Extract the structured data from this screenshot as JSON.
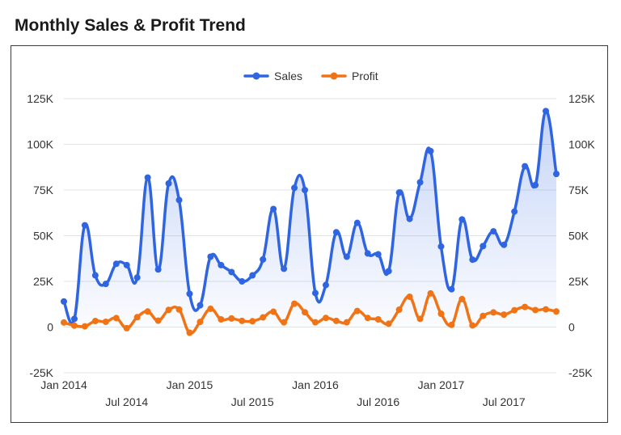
{
  "title": "Monthly Sales & Profit Trend",
  "chart_data": {
    "type": "line",
    "title": "Monthly Sales & Profit Trend",
    "x": [
      "2014-01",
      "2014-02",
      "2014-03",
      "2014-04",
      "2014-05",
      "2014-06",
      "2014-07",
      "2014-08",
      "2014-09",
      "2014-10",
      "2014-11",
      "2014-12",
      "2015-01",
      "2015-02",
      "2015-03",
      "2015-04",
      "2015-05",
      "2015-06",
      "2015-07",
      "2015-08",
      "2015-09",
      "2015-10",
      "2015-11",
      "2015-12",
      "2016-01",
      "2016-02",
      "2016-03",
      "2016-04",
      "2016-05",
      "2016-06",
      "2016-07",
      "2016-08",
      "2016-09",
      "2016-10",
      "2016-11",
      "2016-12",
      "2017-01",
      "2017-02",
      "2017-03",
      "2017-04",
      "2017-05",
      "2017-06",
      "2017-07",
      "2017-08",
      "2017-09",
      "2017-10",
      "2017-11",
      "2017-12"
    ],
    "x_tick_labels": [
      {
        "label": "Jan 2014",
        "index": 0,
        "row": 1
      },
      {
        "label": "Jul 2014",
        "index": 6,
        "row": 2
      },
      {
        "label": "Jan 2015",
        "index": 12,
        "row": 1
      },
      {
        "label": "Jul 2015",
        "index": 18,
        "row": 2
      },
      {
        "label": "Jan 2016",
        "index": 24,
        "row": 1
      },
      {
        "label": "Jul 2016",
        "index": 30,
        "row": 2
      },
      {
        "label": "Jan 2017",
        "index": 36,
        "row": 1
      },
      {
        "label": "Jul 2017",
        "index": 42,
        "row": 2
      }
    ],
    "series": [
      {
        "name": "Sales",
        "color": "#2f65e0",
        "fill": true,
        "values": [
          14000,
          4500,
          55700,
          28300,
          23600,
          34600,
          33900,
          27100,
          81800,
          31500,
          78600,
          69500,
          18200,
          11900,
          38500,
          33900,
          30100,
          25000,
          28300,
          37000,
          64600,
          31900,
          76200,
          75000,
          18600,
          23000,
          51900,
          38500,
          57000,
          40300,
          39800,
          30600,
          73600,
          59200,
          79200,
          96300,
          44100,
          20700,
          58900,
          36900,
          44300,
          52400,
          45000,
          63200,
          88000,
          77700,
          118200,
          83800
        ]
      },
      {
        "name": "Profit",
        "color": "#f07416",
        "fill": false,
        "values": [
          2500,
          800,
          400,
          3300,
          2900,
          4900,
          -600,
          5400,
          8500,
          3500,
          9400,
          9600,
          -3100,
          2800,
          10000,
          4200,
          4700,
          3400,
          3200,
          5300,
          8400,
          2600,
          12800,
          8100,
          2600,
          5000,
          3400,
          2600,
          8800,
          5000,
          4200,
          1800,
          9500,
          16600,
          4500,
          18400,
          7300,
          1200,
          15300,
          900,
          6100,
          8000,
          6800,
          9200,
          11000,
          9300,
          9700,
          8500
        ]
      }
    ],
    "y_ticks": [
      "-25K",
      "0",
      "25K",
      "50K",
      "75K",
      "100K",
      "125K"
    ],
    "y_tick_values": [
      -25000,
      0,
      25000,
      50000,
      75000,
      100000,
      125000
    ],
    "ylim": [
      -25000,
      125000
    ],
    "grid": true,
    "legend": "top-center",
    "dual_axis_labels": true
  }
}
